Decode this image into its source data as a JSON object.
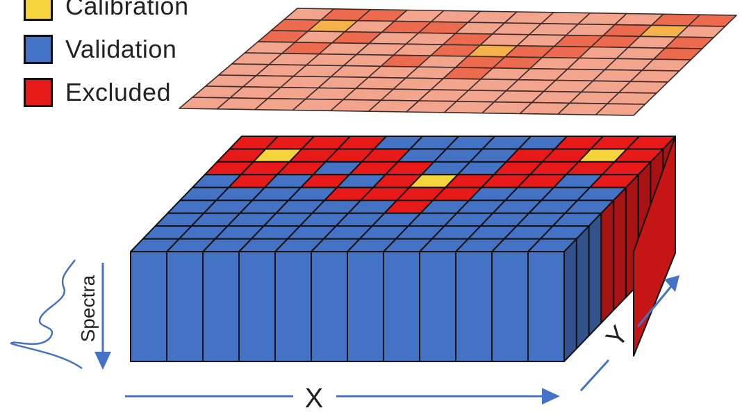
{
  "legend": [
    {
      "label": "Calibration",
      "color": "#f5d33a"
    },
    {
      "label": "Validation",
      "color": "#4472c4"
    },
    {
      "label": "Excluded",
      "color": "#e81919"
    }
  ],
  "axes": {
    "x": "X",
    "y": "Y",
    "spectra": "Spectra"
  },
  "colors": {
    "calibration": "#f5d33a",
    "validation": "#4472c4",
    "excluded": "#e81919",
    "map_light": "#f3a48c",
    "map_mid": "#ec6b4e",
    "map_highlight": "#f6b24a",
    "arrow": "#4472c4"
  },
  "grid": {
    "rows": 9,
    "cols": 12,
    "pattern": [
      "EEEEVVVVVEEE",
      "ECEEEVVVEECE",
      "EEEVEEVVEEEE",
      "VEVEVECEEEVE",
      "VVVVEEEEVVVV",
      "VVVVVVEVVVVV",
      "VVVVVVVVVVVV",
      "VVVVVVVVVVVV",
      "VVVVVVVVVVVV"
    ],
    "right_side_excluded": true
  }
}
